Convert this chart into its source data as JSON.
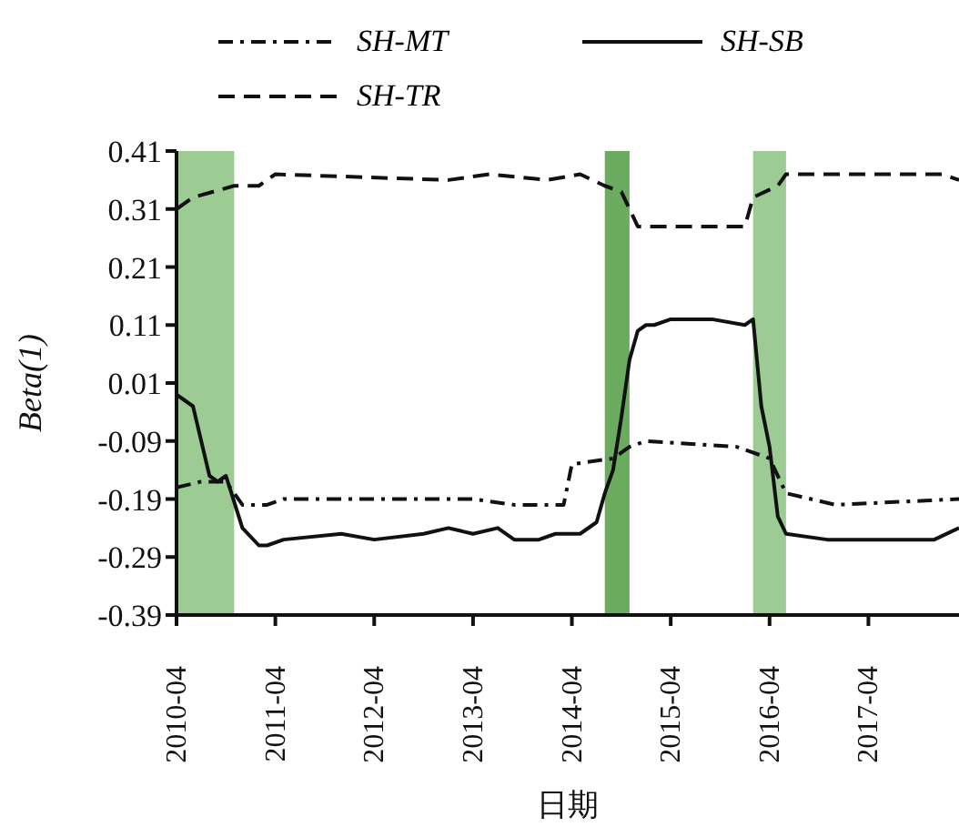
{
  "chart_data": {
    "type": "line",
    "xlabel": "日期",
    "ylabel": "Beta(1)",
    "legend": "top",
    "marker": "none",
    "xlim": [
      "2010-04",
      "2018-03"
    ],
    "xticks": [
      "2010-04",
      "2011-04",
      "2012-04",
      "2013-04",
      "2014-04",
      "2015-04",
      "2016-04",
      "2017-04"
    ],
    "ylim": [
      -0.39,
      0.41
    ],
    "yticks": [
      -0.39,
      -0.29,
      -0.19,
      -0.09,
      0.01,
      0.11,
      0.21,
      0.31,
      0.41
    ],
    "bands": [
      {
        "axis": "x",
        "from": "2010-04",
        "to": "2010-11",
        "color": "#9ccc94"
      },
      {
        "axis": "x",
        "from": "2014-08",
        "to": "2014-11",
        "color": "#6aab5f"
      },
      {
        "axis": "x",
        "from": "2016-02",
        "to": "2016-06",
        "color": "#9ccc94"
      }
    ],
    "series": [
      {
        "name": "SH-MT",
        "color": "#111111",
        "line_style": "dashdot",
        "x": [
          "2010-04",
          "2010-07",
          "2010-10",
          "2010-12",
          "2011-03",
          "2011-05",
          "2013-04",
          "2013-09",
          "2014-03",
          "2014-04",
          "2014-09",
          "2014-11",
          "2015-01",
          "2015-12",
          "2016-04",
          "2016-06",
          "2016-12",
          "2018-03"
        ],
        "values": [
          -0.17,
          -0.16,
          -0.16,
          -0.2,
          -0.2,
          -0.19,
          -0.19,
          -0.2,
          -0.2,
          -0.13,
          -0.12,
          -0.1,
          -0.09,
          -0.1,
          -0.12,
          -0.18,
          -0.2,
          -0.19
        ]
      },
      {
        "name": "SH-SB",
        "color": "#111111",
        "line_style": "solid",
        "x": [
          "2010-04",
          "2010-06",
          "2010-08",
          "2010-09",
          "2010-10",
          "2010-12",
          "2011-02",
          "2011-03",
          "2011-05",
          "2011-12",
          "2012-04",
          "2012-10",
          "2013-01",
          "2013-04",
          "2013-07",
          "2013-09",
          "2013-12",
          "2014-02",
          "2014-05",
          "2014-07",
          "2014-08",
          "2014-09",
          "2014-10",
          "2014-11",
          "2014-12",
          "2015-01",
          "2015-02",
          "2015-04",
          "2015-09",
          "2016-01",
          "2016-02",
          "2016-03",
          "2016-04",
          "2016-05",
          "2016-06",
          "2016-11",
          "2017-06",
          "2017-12",
          "2018-03"
        ],
        "values": [
          -0.01,
          -0.03,
          -0.15,
          -0.16,
          -0.15,
          -0.24,
          -0.27,
          -0.27,
          -0.26,
          -0.25,
          -0.26,
          -0.25,
          -0.24,
          -0.25,
          -0.24,
          -0.26,
          -0.26,
          -0.25,
          -0.25,
          -0.23,
          -0.18,
          -0.14,
          -0.05,
          0.05,
          0.1,
          0.11,
          0.11,
          0.12,
          0.12,
          0.11,
          0.12,
          -0.03,
          -0.1,
          -0.22,
          -0.25,
          -0.26,
          -0.26,
          -0.26,
          -0.24
        ]
      },
      {
        "name": "SH-TR",
        "color": "#111111",
        "line_style": "dashed",
        "x": [
          "2010-04",
          "2010-06",
          "2010-11",
          "2011-02",
          "2011-04",
          "2013-01",
          "2013-06",
          "2014-01",
          "2014-05",
          "2014-08",
          "2014-10",
          "2014-12",
          "2016-01",
          "2016-02",
          "2016-05",
          "2016-06",
          "2018-01",
          "2018-03"
        ],
        "values": [
          0.31,
          0.33,
          0.35,
          0.35,
          0.37,
          0.36,
          0.37,
          0.36,
          0.37,
          0.35,
          0.34,
          0.28,
          0.28,
          0.33,
          0.35,
          0.37,
          0.37,
          0.36
        ]
      }
    ]
  }
}
